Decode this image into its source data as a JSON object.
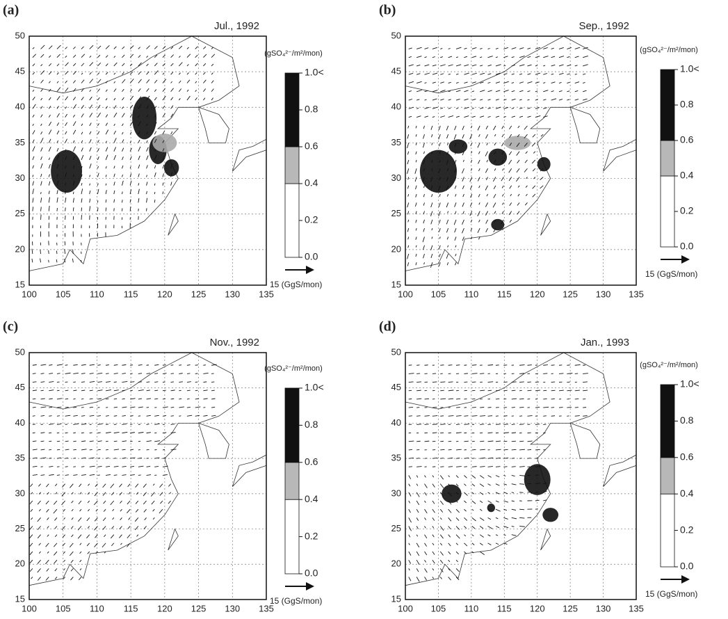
{
  "panels": [
    {
      "label": "(a)",
      "title": "Jul., 1992",
      "xlim": [
        100,
        135
      ],
      "ylim": [
        15,
        50
      ],
      "xticks": [
        100,
        105,
        110,
        115,
        120,
        125,
        130,
        135
      ],
      "yticks": [
        15,
        20,
        25,
        30,
        35,
        40,
        45,
        50
      ],
      "colorbar": {
        "unit": "(gSO₄²⁻/m²/mon)",
        "bounds": [
          0,
          0.4,
          0.6,
          1
        ],
        "colors": [
          "#ffffff",
          "#b8b8b8",
          "#111111"
        ],
        "ticks": [
          {
            "value": 1,
            "label": "1.0<"
          },
          {
            "value": 0.8,
            "label": "0.8"
          },
          {
            "value": 0.6,
            "label": "0.6"
          },
          {
            "value": 0.4,
            "label": "0.4"
          },
          {
            "value": 0.2,
            "label": "0.2"
          },
          {
            "value": 0,
            "label": "0.0"
          }
        ]
      },
      "arrow_label": "15 (GgS/mon)"
    },
    {
      "label": "(b)",
      "title": "Sep., 1992",
      "xlim": [
        100,
        135
      ],
      "ylim": [
        15,
        50
      ],
      "xticks": [
        100,
        105,
        110,
        115,
        120,
        125,
        130,
        135
      ],
      "yticks": [
        15,
        20,
        25,
        30,
        35,
        40,
        45,
        50
      ],
      "colorbar": {
        "unit": "(gSO₄²⁻/m²/mon)",
        "bounds": [
          0,
          0.4,
          0.6,
          1
        ],
        "colors": [
          "#ffffff",
          "#b8b8b8",
          "#111111"
        ],
        "ticks": [
          {
            "value": 1,
            "label": "1.0<"
          },
          {
            "value": 0.8,
            "label": "0.8"
          },
          {
            "value": 0.6,
            "label": "0.6"
          },
          {
            "value": 0.4,
            "label": "0.4"
          },
          {
            "value": 0.2,
            "label": "0.2"
          },
          {
            "value": 0,
            "label": "0.0"
          }
        ]
      },
      "arrow_label": "15 (GgS/mon)"
    },
    {
      "label": "(c)",
      "title": "Nov., 1992",
      "xlim": [
        100,
        135
      ],
      "ylim": [
        15,
        50
      ],
      "xticks": [
        100,
        105,
        110,
        115,
        120,
        125,
        130,
        135
      ],
      "yticks": [
        15,
        20,
        25,
        30,
        35,
        40,
        45,
        50
      ],
      "colorbar": {
        "unit": "(gSO₄²⁻/m²/mon)",
        "bounds": [
          0,
          0.4,
          0.6,
          1
        ],
        "colors": [
          "#ffffff",
          "#b8b8b8",
          "#111111"
        ],
        "ticks": [
          {
            "value": 1,
            "label": "1.0<"
          },
          {
            "value": 0.8,
            "label": "0.8"
          },
          {
            "value": 0.6,
            "label": "0.6"
          },
          {
            "value": 0.4,
            "label": "0.4"
          },
          {
            "value": 0.2,
            "label": "0.2"
          },
          {
            "value": 0,
            "label": "0.0"
          }
        ]
      },
      "arrow_label": "15 (GgS/mon)"
    },
    {
      "label": "(d)",
      "title": "Jan., 1993",
      "xlim": [
        100,
        135
      ],
      "ylim": [
        15,
        50
      ],
      "xticks": [
        100,
        105,
        110,
        115,
        120,
        125,
        130,
        135
      ],
      "yticks": [
        15,
        20,
        25,
        30,
        35,
        40,
        45,
        50
      ],
      "colorbar": {
        "unit": "(gSO₄²⁻/m²/mon)",
        "bounds": [
          0,
          0.4,
          0.6,
          1
        ],
        "colors": [
          "#ffffff",
          "#b8b8b8",
          "#111111"
        ],
        "ticks": [
          {
            "value": 1,
            "label": "1.0<"
          },
          {
            "value": 0.8,
            "label": "0.8"
          },
          {
            "value": 0.6,
            "label": "0.6"
          },
          {
            "value": 0.4,
            "label": "0.4"
          },
          {
            "value": 0.2,
            "label": "0.2"
          },
          {
            "value": 0,
            "label": "0.0"
          }
        ]
      },
      "arrow_label": "15 (GgS/mon)"
    }
  ]
}
